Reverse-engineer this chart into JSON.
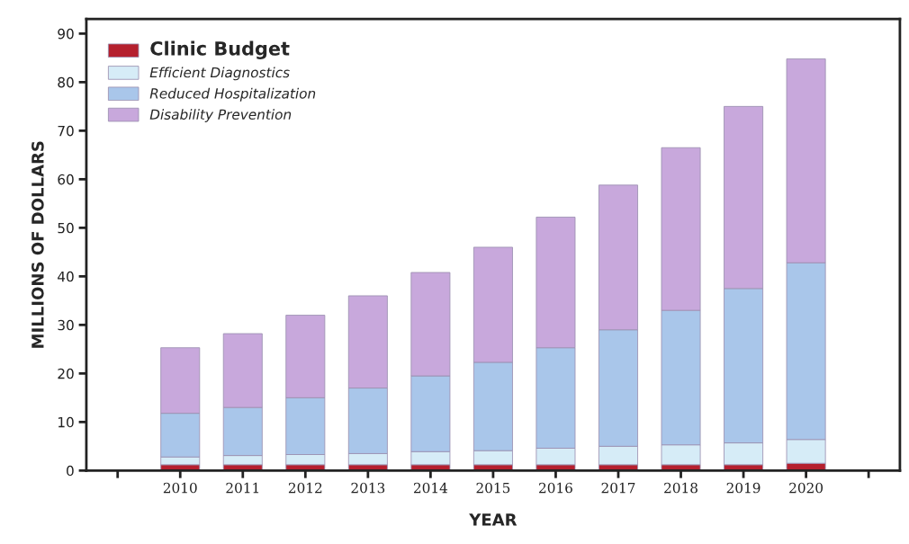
{
  "chart_data": {
    "type": "bar",
    "stacked": true,
    "xlabel": "YEAR",
    "ylabel": "MILLIONS OF DOLLARS",
    "categories": [
      null,
      "2010",
      "2011",
      "2012",
      "2013",
      "2014",
      "2015",
      "2016",
      "2017",
      "2018",
      "2019",
      "2020",
      null
    ],
    "series": [
      {
        "name": "Clinic Budget",
        "color": "#b5202e",
        "values": [
          null,
          1.2,
          1.2,
          1.2,
          1.2,
          1.2,
          1.2,
          1.2,
          1.2,
          1.2,
          1.2,
          1.5,
          null
        ]
      },
      {
        "name": "Efficient Diagnostics",
        "color": "#d6ecf7",
        "values": [
          null,
          1.6,
          1.9,
          2.1,
          2.3,
          2.7,
          2.9,
          3.4,
          3.8,
          4.1,
          4.5,
          4.9,
          null
        ]
      },
      {
        "name": "Reduced Hospitalization",
        "color": "#a9c6ea",
        "values": [
          null,
          9.0,
          9.9,
          11.7,
          13.5,
          15.6,
          18.2,
          20.7,
          24.0,
          27.7,
          31.8,
          36.4,
          null
        ]
      },
      {
        "name": "Disability Prevention",
        "color": "#c8a8dc",
        "values": [
          null,
          13.5,
          15.2,
          17.0,
          19.0,
          21.3,
          23.7,
          26.9,
          29.8,
          33.5,
          37.5,
          42.0,
          null
        ]
      }
    ],
    "ylim": [
      0,
      93
    ],
    "yticks": [
      0,
      10,
      20,
      30,
      40,
      50,
      60,
      70,
      80,
      90
    ],
    "grid": false,
    "legend": "top left"
  }
}
